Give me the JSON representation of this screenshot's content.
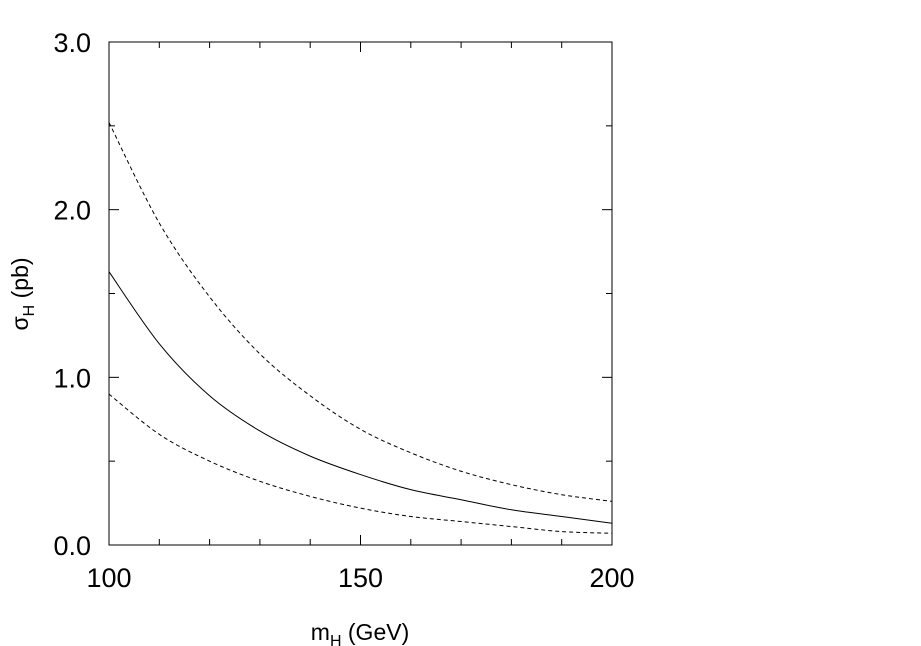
{
  "chart_data": {
    "type": "line",
    "title": "",
    "xlabel": {
      "main": "m",
      "sub": "H",
      "suffix": " (GeV)"
    },
    "ylabel": {
      "main": "σ",
      "sub": "H",
      "suffix": " (pb)"
    },
    "xlim": [
      100,
      200
    ],
    "ylim": [
      0.0,
      3.0
    ],
    "xticks": [
      100,
      150,
      200
    ],
    "xtick_labels": [
      "100",
      "150",
      "200"
    ],
    "xminor": [
      110,
      120,
      130,
      140,
      160,
      170,
      180,
      190
    ],
    "yticks": [
      0.0,
      1.0,
      2.0,
      3.0
    ],
    "ytick_labels": [
      "0.0",
      "1.0",
      "2.0",
      "3.0"
    ],
    "yminor": [
      0.5,
      1.5,
      2.5
    ],
    "grid": false,
    "legend": "none",
    "x": [
      100,
      110,
      120,
      130,
      140,
      150,
      160,
      170,
      180,
      190,
      200
    ],
    "series": [
      {
        "style": "dashed",
        "values": [
          2.52,
          1.92,
          1.48,
          1.14,
          0.89,
          0.69,
          0.55,
          0.44,
          0.36,
          0.3,
          0.26
        ]
      },
      {
        "style": "solid",
        "values": [
          1.63,
          1.2,
          0.89,
          0.68,
          0.53,
          0.42,
          0.33,
          0.27,
          0.21,
          0.17,
          0.13
        ]
      },
      {
        "style": "dashed",
        "values": [
          0.9,
          0.66,
          0.5,
          0.38,
          0.29,
          0.22,
          0.17,
          0.14,
          0.11,
          0.08,
          0.07
        ]
      }
    ]
  }
}
